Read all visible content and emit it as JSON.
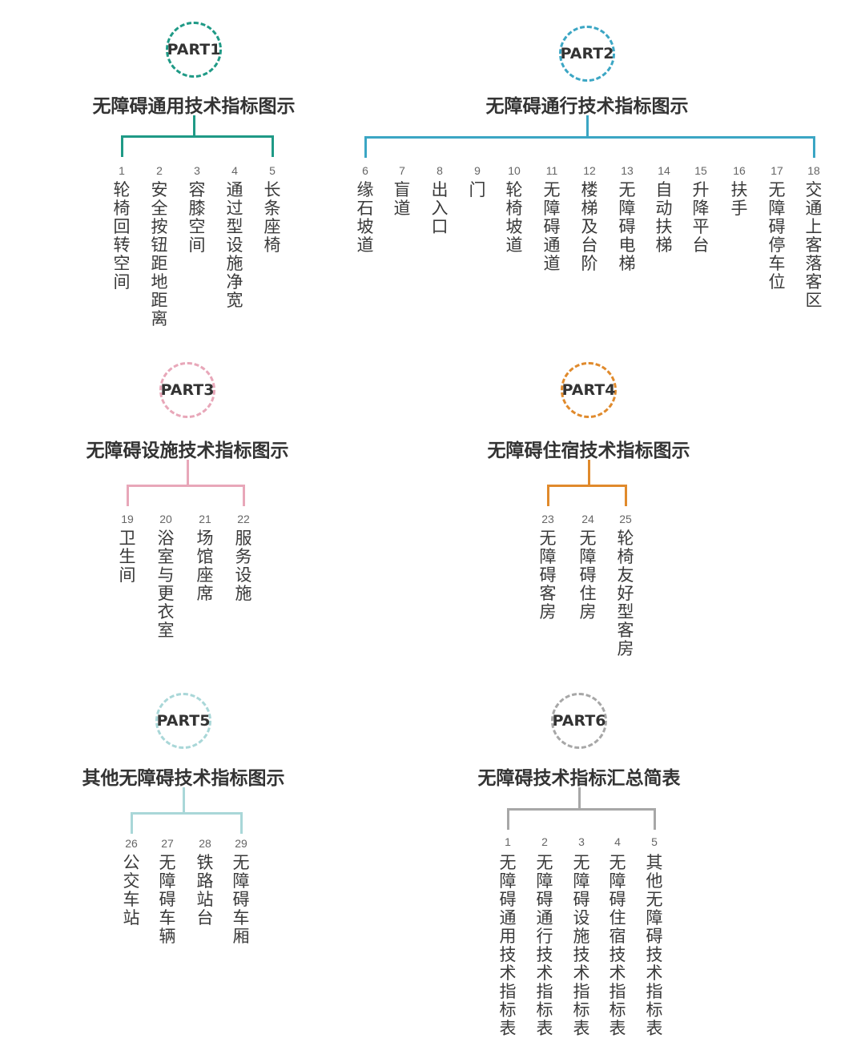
{
  "sections": [
    {
      "part": "PART1",
      "title": "无障碍通用技术指标图示",
      "color": "#1f9a86",
      "items": [
        {
          "n": "1",
          "t": "轮椅回转空间"
        },
        {
          "n": "2",
          "t": "安全按钮距地距离"
        },
        {
          "n": "3",
          "t": "容膝空间"
        },
        {
          "n": "4",
          "t": "通过型设施净宽"
        },
        {
          "n": "5",
          "t": "长条座椅"
        }
      ]
    },
    {
      "part": "PART2",
      "title": "无障碍通行技术指标图示",
      "color": "#3ba6c4",
      "items": [
        {
          "n": "6",
          "t": "缘石坡道"
        },
        {
          "n": "7",
          "t": "盲道"
        },
        {
          "n": "8",
          "t": "出入口"
        },
        {
          "n": "9",
          "t": "门"
        },
        {
          "n": "10",
          "t": "轮椅坡道"
        },
        {
          "n": "11",
          "t": "无障碍通道"
        },
        {
          "n": "12",
          "t": "楼梯及台阶"
        },
        {
          "n": "13",
          "t": "无障碍电梯"
        },
        {
          "n": "14",
          "t": "自动扶梯"
        },
        {
          "n": "15",
          "t": "升降平台"
        },
        {
          "n": "16",
          "t": "扶手"
        },
        {
          "n": "17",
          "t": "无障碍停车位"
        },
        {
          "n": "18",
          "t": "交通上客落客区"
        }
      ]
    },
    {
      "part": "PART3",
      "title": "无障碍设施技术指标图示",
      "color": "#e8a7b9",
      "items": [
        {
          "n": "19",
          "t": "卫生间"
        },
        {
          "n": "20",
          "t": "浴室与更衣室"
        },
        {
          "n": "21",
          "t": "场馆座席"
        },
        {
          "n": "22",
          "t": "服务设施"
        }
      ]
    },
    {
      "part": "PART4",
      "title": "无障碍住宿技术指标图示",
      "color": "#e08a2c",
      "items": [
        {
          "n": "23",
          "t": "无障碍客房"
        },
        {
          "n": "24",
          "t": "无障碍住房"
        },
        {
          "n": "25",
          "t": "轮椅友好型客房"
        }
      ]
    },
    {
      "part": "PART5",
      "title": "其他无障碍技术指标图示",
      "color": "#a9d7d8",
      "items": [
        {
          "n": "26",
          "t": "公交车站"
        },
        {
          "n": "27",
          "t": "无障碍车辆"
        },
        {
          "n": "28",
          "t": "铁路站台"
        },
        {
          "n": "29",
          "t": "无障碍车厢"
        }
      ]
    },
    {
      "part": "PART6",
      "title": "无障碍技术指标汇总简表",
      "color": "#a7a7a7",
      "items": [
        {
          "n": "1",
          "t": "无障碍通用技术指标表"
        },
        {
          "n": "2",
          "t": "无障碍通行技术指标表"
        },
        {
          "n": "3",
          "t": "无障碍设施技术指标表"
        },
        {
          "n": "4",
          "t": "无障碍住宿技术指标表"
        },
        {
          "n": "5",
          "t": "其他无障碍技术指标表"
        }
      ]
    }
  ]
}
